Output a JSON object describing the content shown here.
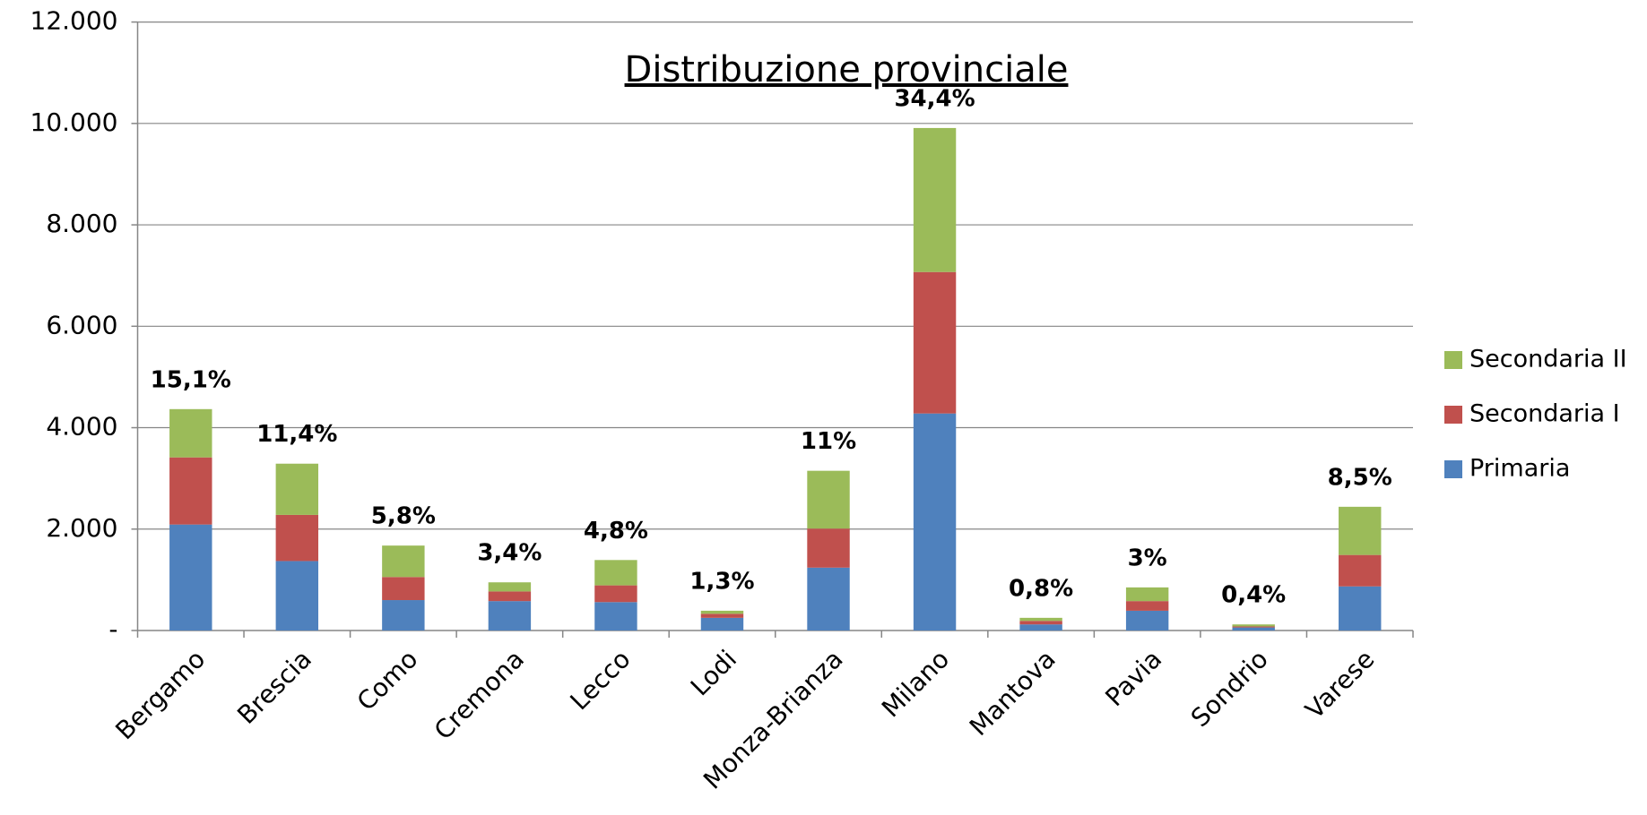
{
  "chart_data": {
    "type": "stacked_bar",
    "title": "Distribuzione provinciale",
    "categories": [
      "Bergamo",
      "Brescia",
      "Como",
      "Cremona",
      "Lecco",
      "Lodi",
      "Monza-Brianza",
      "Milano",
      "Mantova",
      "Pavia",
      "Sondrio",
      "Varese"
    ],
    "series": [
      {
        "name": "Primaria",
        "color": "#4f81bd",
        "values": [
          2090,
          1370,
          600,
          580,
          560,
          250,
          1240,
          4280,
          120,
          390,
          60,
          870
        ]
      },
      {
        "name": "Secondaria I",
        "color": "#c0504d",
        "values": [
          1324,
          910,
          455,
          190,
          330,
          80,
          770,
          2790,
          70,
          190,
          20,
          620
        ]
      },
      {
        "name": "Secondaria II",
        "color": "#9bbb59",
        "values": [
          952,
          1010,
          620,
          180,
          500,
          60,
          1140,
          2840,
          60,
          270,
          40,
          950
        ]
      }
    ],
    "annotations": [
      "15,1%",
      "11,4%",
      "5,8%",
      "3,4%",
      "4,8%",
      "1,3%",
      "11%",
      "34,4%",
      "0,8%",
      "3%",
      "0,4%",
      "8,5%"
    ],
    "ylim": [
      0,
      12000
    ],
    "yticks": [
      {
        "value": 0,
        "label": "-"
      },
      {
        "value": 2000,
        "label": "2.000"
      },
      {
        "value": 4000,
        "label": "4.000"
      },
      {
        "value": 6000,
        "label": "6.000"
      },
      {
        "value": 8000,
        "label": "8.000"
      },
      {
        "value": 10000,
        "label": "10.000"
      },
      {
        "value": 12000,
        "label": "12.000"
      }
    ],
    "grid": true,
    "legend": "right"
  }
}
